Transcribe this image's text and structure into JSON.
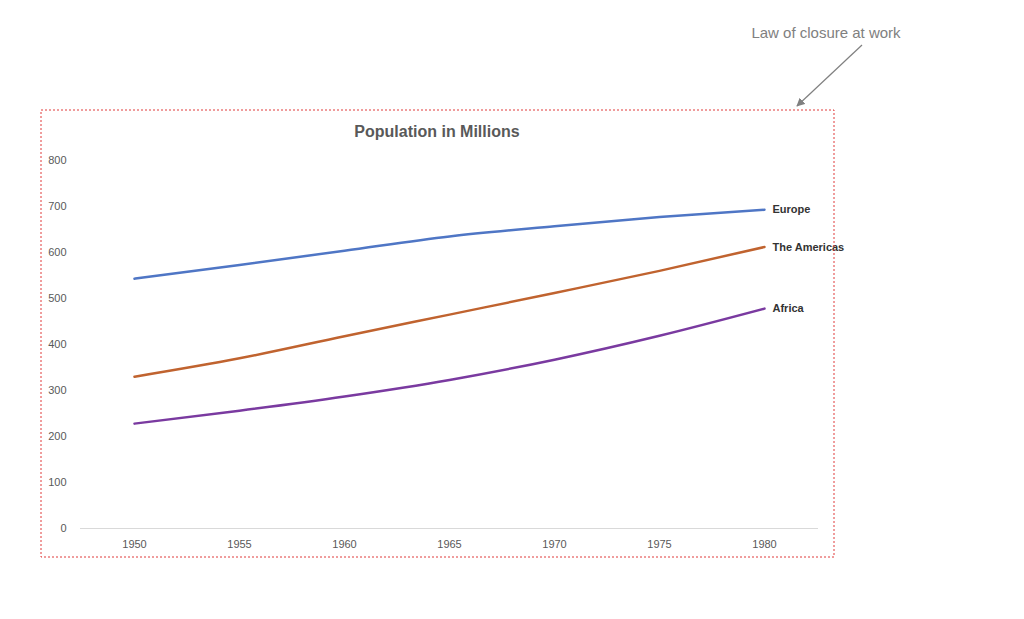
{
  "chart_data": {
    "type": "line",
    "title": "Population in Millions",
    "annotation": "Law of closure at work",
    "categories": [
      "1950",
      "1955",
      "1960",
      "1965",
      "1970",
      "1975",
      "1980"
    ],
    "series": [
      {
        "name": "Europe",
        "color": "#4f76c5",
        "values": [
          543,
          573,
          604,
          635,
          657,
          677,
          693
        ]
      },
      {
        "name": "The Americas",
        "color": "#c0632f",
        "values": [
          330,
          370,
          418,
          465,
          512,
          560,
          612
        ]
      },
      {
        "name": "Africa",
        "color": "#7a3aa0",
        "values": [
          228,
          256,
          287,
          323,
          367,
          419,
          478
        ]
      }
    ],
    "ylim": [
      0,
      800
    ],
    "yticks": [
      0,
      100,
      200,
      300,
      400,
      500,
      600,
      700,
      800
    ],
    "grid": false
  }
}
